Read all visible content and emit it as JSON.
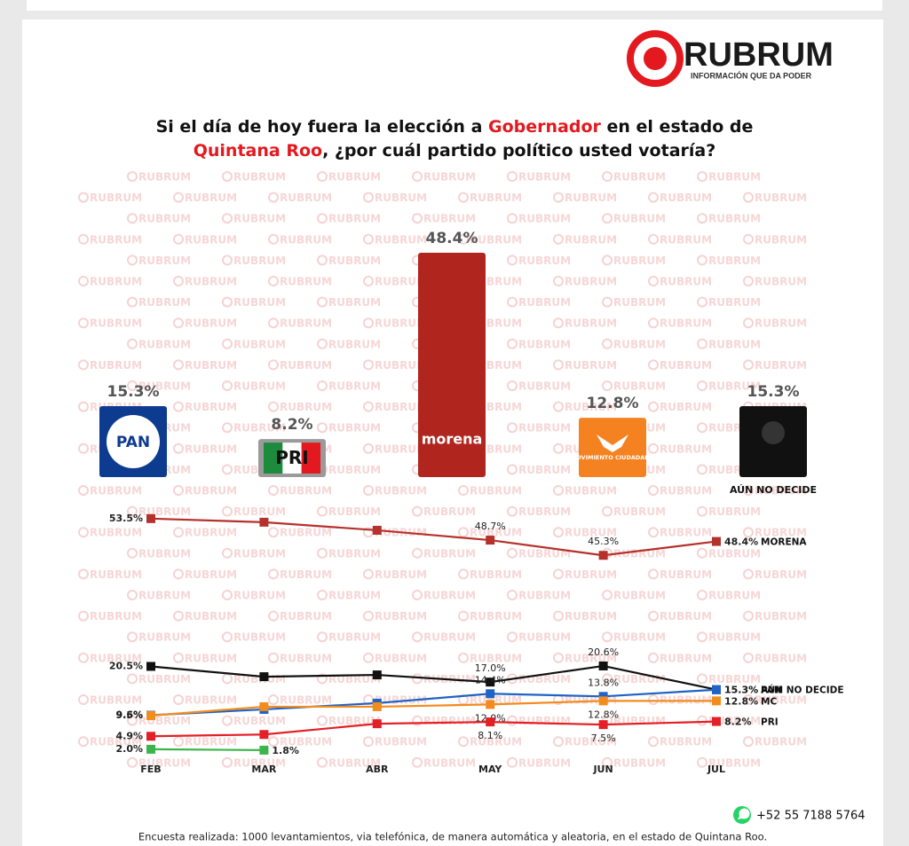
{
  "header": {
    "brand": "RUBRUM",
    "tagline": "INFORMACIÓN QUE DA PODER",
    "watermark": "RUBRUM"
  },
  "title_parts": [
    "Si el día de hoy fuera la elección a ",
    "Gobernador",
    " en el estado de",
    "Quintana Roo",
    ", ¿por cuál partido político usted votaría?"
  ],
  "chart_data": [
    {
      "type": "bar",
      "categories": [
        "PAN",
        "PRI",
        "morena",
        "MOVIMIENTO CIUDADANO",
        "AÚN NO DECIDE"
      ],
      "values": [
        15.3,
        8.2,
        48.4,
        12.8,
        15.3
      ],
      "value_labels": [
        "15.3%",
        "8.2%",
        "48.4%",
        "12.8%",
        "15.3%"
      ],
      "colors": [
        "#0d3b8f",
        "#9a9a9a",
        "#b0261e",
        "#f58220",
        "#111111"
      ]
    },
    {
      "type": "line",
      "categories": [
        "FEB",
        "MAR",
        "ABR",
        "MAY",
        "JUN",
        "JUL"
      ],
      "series": [
        {
          "name": "MORENA",
          "color": "#b5312b",
          "values": [
            53.5,
            52.7,
            50.9,
            48.7,
            45.3,
            48.4
          ],
          "value_labels": [
            "53.5%",
            null,
            null,
            "48.7%",
            "45.3%",
            "48.4%"
          ]
        },
        {
          "name": "AÚN NO DECIDE",
          "color": "#111111",
          "values": [
            20.5,
            18.2,
            18.6,
            17.0,
            20.6,
            15.3
          ],
          "value_labels": [
            "20.5%",
            null,
            null,
            "17.0%",
            "20.6%",
            "15.3%"
          ]
        },
        {
          "name": "PAN",
          "color": "#1f63c4",
          "values": [
            9.6,
            10.9,
            12.3,
            14.4,
            13.8,
            15.3
          ],
          "value_labels": [
            "9.6%",
            null,
            null,
            "14.4%",
            "13.8%",
            "15.3%"
          ]
        },
        {
          "name": "MC",
          "color": "#f28c1e",
          "values": [
            9.5,
            11.5,
            11.5,
            12.0,
            12.8,
            12.8
          ],
          "value_labels": [
            "9.5%",
            null,
            null,
            "12.0%",
            "12.8%",
            "12.8%"
          ]
        },
        {
          "name": "PRI",
          "color": "#e32027",
          "values": [
            4.9,
            5.3,
            7.7,
            8.1,
            7.5,
            8.2
          ],
          "value_labels": [
            "4.9%",
            null,
            null,
            "8.1%",
            "7.5%",
            "8.2%"
          ]
        },
        {
          "color": "#3cb44b",
          "values": [
            2.0,
            1.8,
            null,
            null,
            null,
            null
          ],
          "value_labels": [
            "2.0%",
            "1.8%",
            null,
            null,
            null,
            null
          ]
        }
      ]
    }
  ],
  "footer": {
    "phone": "+52 55 7188 5764",
    "note": "Encuesta realizada: 1000 levantamientos, via telefónica, de manera automática y aleatoria, en el estado de Quintana Roo."
  }
}
